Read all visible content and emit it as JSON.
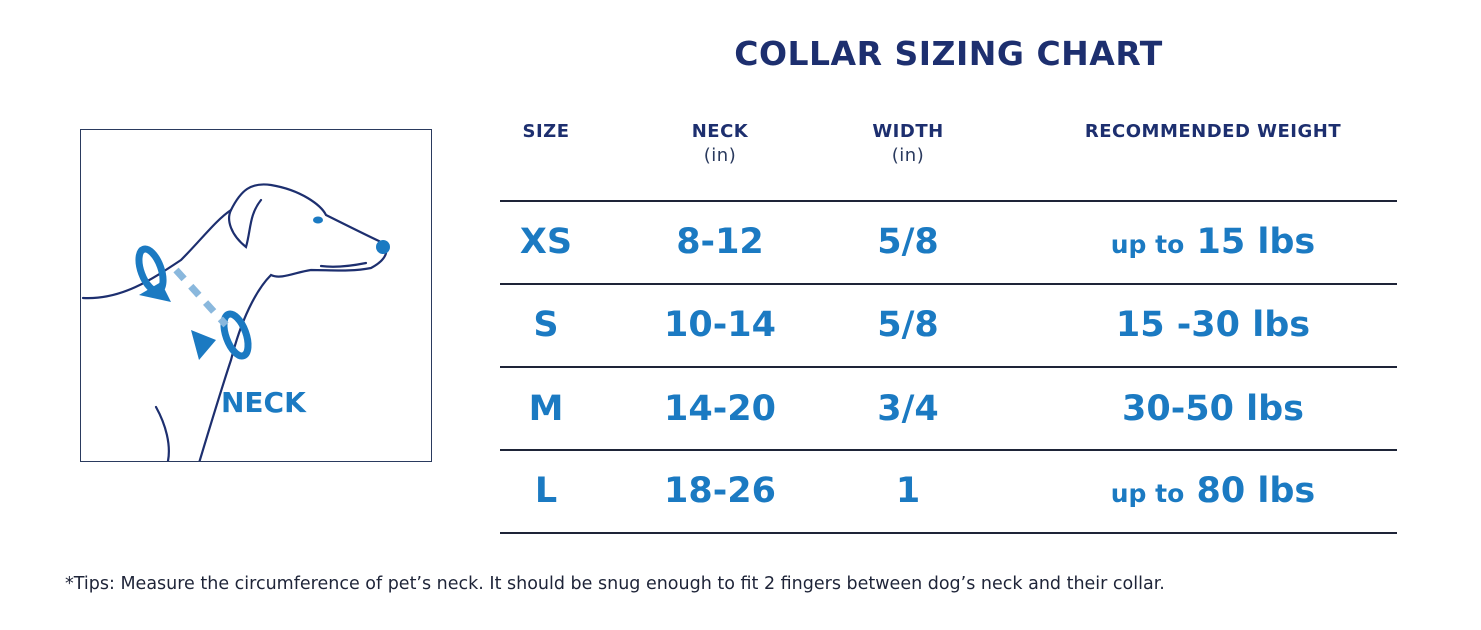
{
  "title": "COLLAR SIZING CHART",
  "illustration": {
    "label": "NECK",
    "outline_color": "#1d2f6f",
    "accent_color": "#1b7ac2"
  },
  "headers": [
    {
      "label": "SIZE",
      "unit": ""
    },
    {
      "label": "NECK",
      "unit": "(in)"
    },
    {
      "label": "WIDTH",
      "unit": "(in)"
    },
    {
      "label": "RECOMMENDED WEIGHT",
      "unit": ""
    }
  ],
  "rows": [
    {
      "size": "XS",
      "neck": "8-12",
      "width": "5/8",
      "weight_prefix": "up to",
      "weight": "15 lbs"
    },
    {
      "size": "S",
      "neck": "10-14",
      "width": "5/8",
      "weight_prefix": "",
      "weight": "15 -30 lbs"
    },
    {
      "size": "M",
      "neck": "14-20",
      "width": "3/4",
      "weight_prefix": "",
      "weight": "30-50 lbs"
    },
    {
      "size": "L",
      "neck": "18-26",
      "width": "1",
      "weight_prefix": "up to",
      "weight": "80 lbs"
    }
  ],
  "tips": "*Tips: Measure the circumference of pet’s neck. It should be snug enough to fit 2 fingers between dog’s neck and their collar.",
  "colors": {
    "heading": "#1d2f6f",
    "value": "#1b7ac2",
    "rule": "#1e2438"
  }
}
